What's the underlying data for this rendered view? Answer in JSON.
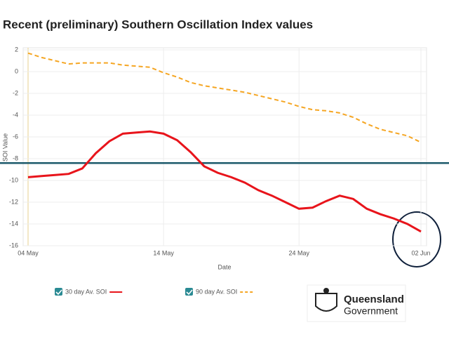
{
  "chart_data": {
    "type": "line",
    "title": "Recent (preliminary) Southern Oscillation Index values",
    "x_label": "Date",
    "y_label": "SOI Value",
    "categories": [
      "04 May",
      null,
      null,
      null,
      null,
      null,
      null,
      null,
      null,
      null,
      "14 May",
      null,
      null,
      null,
      null,
      null,
      null,
      null,
      null,
      null,
      "24 May",
      null,
      null,
      null,
      null,
      null,
      null,
      null,
      null,
      "02 Jun"
    ],
    "series": [
      {
        "name": "30 day Av. SOI",
        "color": "#e8141b",
        "dashed": false,
        "values": [
          -9.7,
          -9.6,
          -9.5,
          -9.4,
          -8.9,
          -7.5,
          -6.4,
          -5.7,
          -5.6,
          -5.5,
          -5.7,
          -6.3,
          -7.4,
          -8.7,
          -9.3,
          -9.7,
          -10.2,
          -10.9,
          -11.4,
          -12.0,
          -12.6,
          -12.5,
          -11.9,
          -11.4,
          -11.7,
          -12.6,
          -13.1,
          -13.5,
          -14.0,
          -14.7
        ]
      },
      {
        "name": "90 day Av. SOI",
        "color": "#f5a623",
        "dashed": true,
        "values": [
          1.7,
          1.3,
          1.0,
          0.7,
          0.8,
          0.8,
          0.8,
          0.6,
          0.5,
          0.4,
          -0.1,
          -0.5,
          -1.0,
          -1.3,
          -1.5,
          -1.7,
          -1.9,
          -2.2,
          -2.5,
          -2.8,
          -3.2,
          -3.5,
          -3.6,
          -3.8,
          -4.2,
          -4.8,
          -5.3,
          -5.6,
          -5.9,
          -6.5
        ]
      }
    ],
    "reference_line": {
      "value": -8.4,
      "color": "#1d5a6b"
    },
    "ylim": [
      -16,
      2
    ],
    "yticks": [
      2,
      0,
      -2,
      -4,
      -6,
      -8,
      -10,
      -12,
      -14,
      -16
    ],
    "grid": true
  },
  "logo": {
    "line1": "Queensland",
    "line2": "Government"
  }
}
